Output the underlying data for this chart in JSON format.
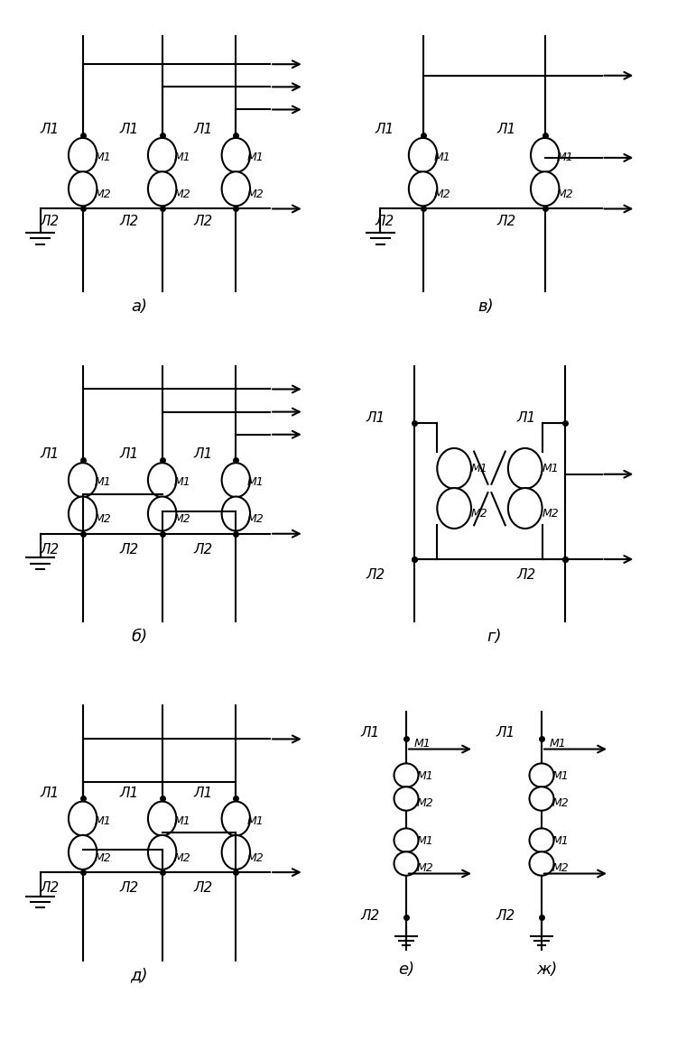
{
  "background": "#ffffff",
  "lc": "#000000",
  "lw": 1.5,
  "fs": 11,
  "cfs": 9,
  "L1": "Л1",
  "L2": "Л2",
  "I1": "М1",
  "I2": "М2",
  "label_a": "а)",
  "label_b": "б)",
  "label_v": "в)",
  "label_g": "г)",
  "label_d": "д)",
  "label_e": "е)",
  "label_zh": "ж)"
}
